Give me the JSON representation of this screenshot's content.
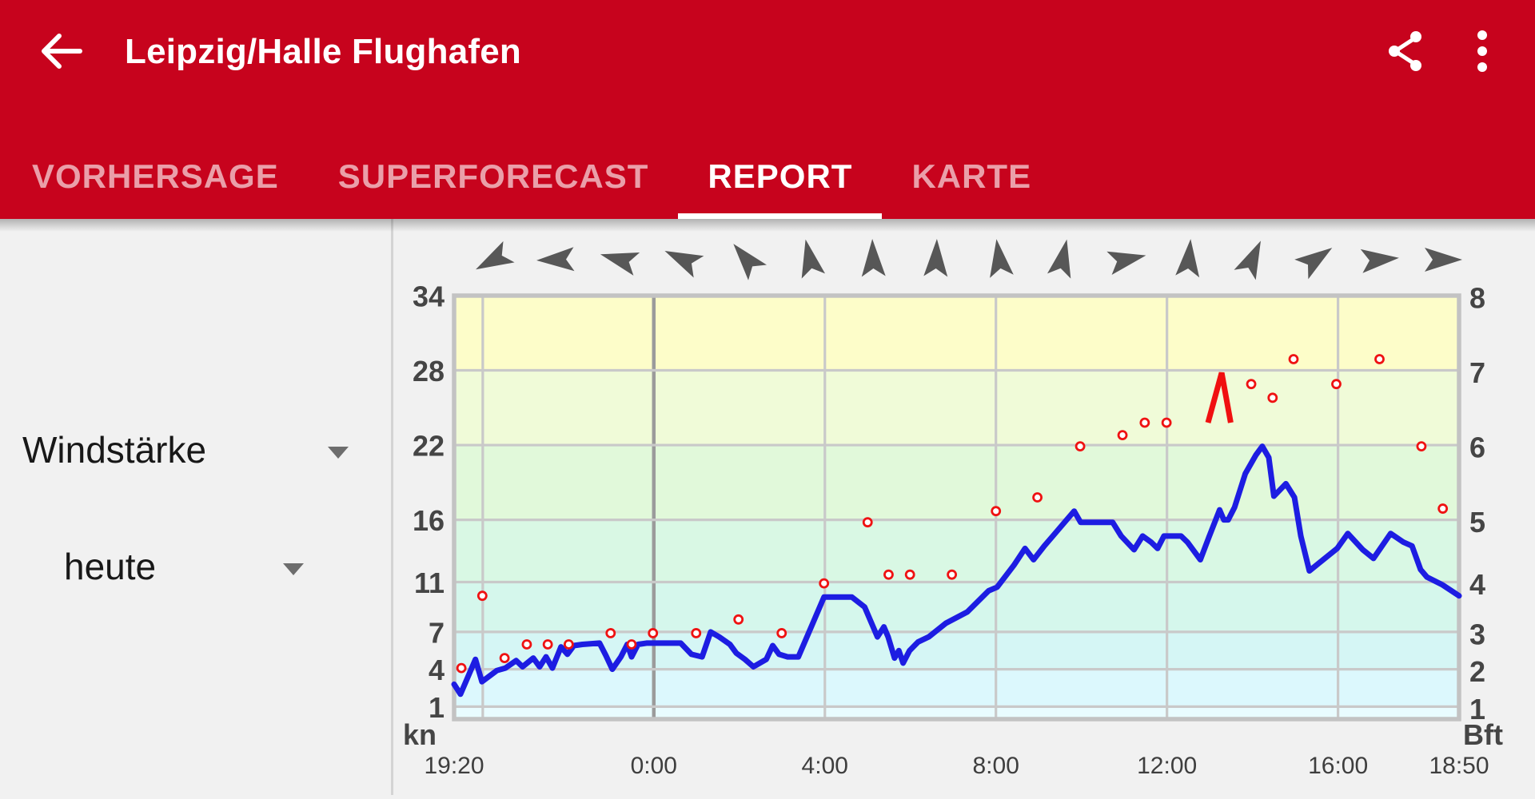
{
  "app_bar": {
    "title": "Leipzig/Halle Flughafen",
    "background_color": "#c7031d",
    "icons": {
      "back": "arrow-left",
      "share": "share-nodes",
      "overflow": "more-vertical"
    }
  },
  "tabs": [
    {
      "label": "VORHERSAGE",
      "active": false
    },
    {
      "label": "SUPERFORECAST",
      "active": false
    },
    {
      "label": "REPORT",
      "active": true
    },
    {
      "label": "KARTE",
      "active": false
    }
  ],
  "sidebar": {
    "parameter_select": {
      "value": "Windstärke"
    },
    "day_select": {
      "value": "heute"
    }
  },
  "chart_data": {
    "type": "line",
    "station": "Leipzig/Halle Flughafen",
    "x_axis": {
      "unit": "time",
      "duration_hours": 23.5,
      "start_label": "19:20",
      "end_label": "18:50",
      "ticks": [
        {
          "t": 0,
          "label": "19:20"
        },
        {
          "t": 4.67,
          "label": "0:00"
        },
        {
          "t": 8.67,
          "label": "4:00"
        },
        {
          "t": 12.67,
          "label": "8:00"
        },
        {
          "t": 16.67,
          "label": "12:00"
        },
        {
          "t": 20.67,
          "label": "16:00"
        },
        {
          "t": 23.5,
          "label": "18:50"
        }
      ],
      "gridlines_t": [
        0.67,
        4.67,
        8.67,
        12.67,
        16.67,
        20.67
      ],
      "midnight_t": 4.67
    },
    "y_axis_left": {
      "unit": "kn",
      "min": 0,
      "max": 34,
      "tick_values": [
        34,
        28,
        22,
        16,
        11,
        7,
        4,
        1
      ]
    },
    "y_axis_right": {
      "unit": "Bft",
      "labels": [
        "8",
        "7",
        "6",
        "5",
        "4",
        "3",
        "2",
        "1"
      ],
      "label_kn_positions": [
        34,
        28,
        22,
        16,
        11,
        7,
        4,
        1
      ]
    },
    "bft_bands": [
      {
        "bft": 1,
        "from_kn": 0,
        "to_kn": 1,
        "color": "#e9fcff"
      },
      {
        "bft": 2,
        "from_kn": 1,
        "to_kn": 4,
        "color": "#dcf8fd"
      },
      {
        "bft": 3,
        "from_kn": 4,
        "to_kn": 7,
        "color": "#d5f6f5"
      },
      {
        "bft": 4,
        "from_kn": 7,
        "to_kn": 11,
        "color": "#d5f7ec"
      },
      {
        "bft": 5,
        "from_kn": 11,
        "to_kn": 16,
        "color": "#d9f8e4"
      },
      {
        "bft": 6,
        "from_kn": 16,
        "to_kn": 22,
        "color": "#e1f9da"
      },
      {
        "bft": 7,
        "from_kn": 22,
        "to_kn": 28,
        "color": "#f0fbd8"
      },
      {
        "bft": 8,
        "from_kn": 28,
        "to_kn": 34,
        "color": "#fdfdc9"
      }
    ],
    "grid": {
      "line_color": "#c9c9c9",
      "midnight_line_color": "#9b9b9b",
      "border_color": "#c3c3c3"
    },
    "series": [
      {
        "name": "wind-speed",
        "style": "line",
        "color": "#1d1de2",
        "points": [
          [
            0,
            2.8
          ],
          [
            0.15,
            2
          ],
          [
            0.5,
            4.8
          ],
          [
            0.65,
            3
          ],
          [
            1,
            3.9
          ],
          [
            1.2,
            4.1
          ],
          [
            1.45,
            4.7
          ],
          [
            1.6,
            4.2
          ],
          [
            1.85,
            4.9
          ],
          [
            2,
            4.2
          ],
          [
            2.15,
            5
          ],
          [
            2.3,
            4.1
          ],
          [
            2.5,
            5.8
          ],
          [
            2.65,
            5.2
          ],
          [
            2.8,
            5.9
          ],
          [
            3,
            6
          ],
          [
            3.4,
            6.1
          ],
          [
            3.55,
            5.1
          ],
          [
            3.7,
            4
          ],
          [
            3.9,
            5
          ],
          [
            4.05,
            6
          ],
          [
            4.15,
            5
          ],
          [
            4.3,
            6
          ],
          [
            4.5,
            6.1
          ],
          [
            5.3,
            6.1
          ],
          [
            5.55,
            5.2
          ],
          [
            5.8,
            5
          ],
          [
            6,
            7
          ],
          [
            6.2,
            6.6
          ],
          [
            6.45,
            6
          ],
          [
            6.6,
            5.3
          ],
          [
            6.8,
            4.8
          ],
          [
            7,
            4.2
          ],
          [
            7.3,
            4.8
          ],
          [
            7.45,
            5.9
          ],
          [
            7.6,
            5.2
          ],
          [
            7.8,
            5
          ],
          [
            8.05,
            5
          ],
          [
            8.3,
            7
          ],
          [
            8.65,
            9.8
          ],
          [
            9.3,
            9.8
          ],
          [
            9.6,
            9
          ],
          [
            9.9,
            6.6
          ],
          [
            10.05,
            7.4
          ],
          [
            10.15,
            6.6
          ],
          [
            10.3,
            4.9
          ],
          [
            10.4,
            5.5
          ],
          [
            10.5,
            4.5
          ],
          [
            10.65,
            5.5
          ],
          [
            10.85,
            6.2
          ],
          [
            11.1,
            6.6
          ],
          [
            11.5,
            7.7
          ],
          [
            12,
            8.6
          ],
          [
            12.5,
            10.3
          ],
          [
            12.7,
            10.6
          ],
          [
            13.1,
            12.4
          ],
          [
            13.35,
            13.7
          ],
          [
            13.55,
            12.8
          ],
          [
            13.8,
            13.9
          ],
          [
            14,
            14.7
          ],
          [
            14.3,
            15.9
          ],
          [
            14.5,
            16.7
          ],
          [
            14.65,
            15.8
          ],
          [
            15.4,
            15.8
          ],
          [
            15.6,
            14.7
          ],
          [
            15.9,
            13.6
          ],
          [
            16.1,
            14.7
          ],
          [
            16.3,
            14.2
          ],
          [
            16.45,
            13.7
          ],
          [
            16.6,
            14.7
          ],
          [
            17,
            14.7
          ],
          [
            17.15,
            14.2
          ],
          [
            17.45,
            12.8
          ],
          [
            17.65,
            14.6
          ],
          [
            17.9,
            16.8
          ],
          [
            18,
            16
          ],
          [
            18.1,
            16
          ],
          [
            18.25,
            17
          ],
          [
            18.5,
            19.7
          ],
          [
            18.75,
            21.2
          ],
          [
            18.9,
            21.9
          ],
          [
            19.05,
            21
          ],
          [
            19.17,
            17.9
          ],
          [
            19.45,
            18.9
          ],
          [
            19.65,
            17.8
          ],
          [
            19.8,
            14.7
          ],
          [
            20,
            11.9
          ],
          [
            20.25,
            12.6
          ],
          [
            20.65,
            13.7
          ],
          [
            20.9,
            14.9
          ],
          [
            21.25,
            13.6
          ],
          [
            21.5,
            12.9
          ],
          [
            21.9,
            14.9
          ],
          [
            22.2,
            14.2
          ],
          [
            22.4,
            13.9
          ],
          [
            22.6,
            12
          ],
          [
            22.75,
            11.4
          ],
          [
            23.1,
            10.8
          ],
          [
            23.5,
            9.9
          ]
        ]
      },
      {
        "name": "wind-gusts",
        "style": "dots",
        "color": "#ef1212",
        "points": [
          [
            0.17,
            4.1
          ],
          [
            0.66,
            9.9
          ],
          [
            1.18,
            4.9
          ],
          [
            1.7,
            6
          ],
          [
            2.19,
            6
          ],
          [
            2.68,
            6
          ],
          [
            3.66,
            6.9
          ],
          [
            4.15,
            6
          ],
          [
            4.65,
            6.9
          ],
          [
            5.66,
            6.9
          ],
          [
            6.65,
            8
          ],
          [
            7.66,
            6.9
          ],
          [
            8.65,
            10.9
          ],
          [
            9.67,
            15.8
          ],
          [
            10.16,
            11.6
          ],
          [
            10.66,
            11.6
          ],
          [
            11.64,
            11.6
          ],
          [
            12.67,
            16.7
          ],
          [
            13.64,
            17.8
          ],
          [
            14.64,
            21.9
          ],
          [
            15.63,
            22.8
          ],
          [
            16.15,
            23.8
          ],
          [
            16.66,
            23.8
          ],
          [
            18.64,
            26.9
          ],
          [
            19.14,
            25.8
          ],
          [
            19.63,
            28.9
          ],
          [
            20.63,
            26.9
          ],
          [
            21.64,
            28.9
          ],
          [
            22.62,
            21.9
          ],
          [
            23.12,
            16.9
          ]
        ]
      }
    ],
    "peak_marker": {
      "name": "gust-peak-arrow",
      "color": "#f01010",
      "points": [
        [
          17.63,
          23.8
        ],
        [
          17.95,
          27.8
        ],
        [
          18.16,
          23.8
        ]
      ]
    },
    "direction_arrows": {
      "color": "#575757",
      "angles_deg": [
        242,
        268,
        285,
        295,
        320,
        348,
        358,
        2,
        352,
        12,
        78,
        5,
        25,
        55,
        85,
        90
      ]
    }
  }
}
